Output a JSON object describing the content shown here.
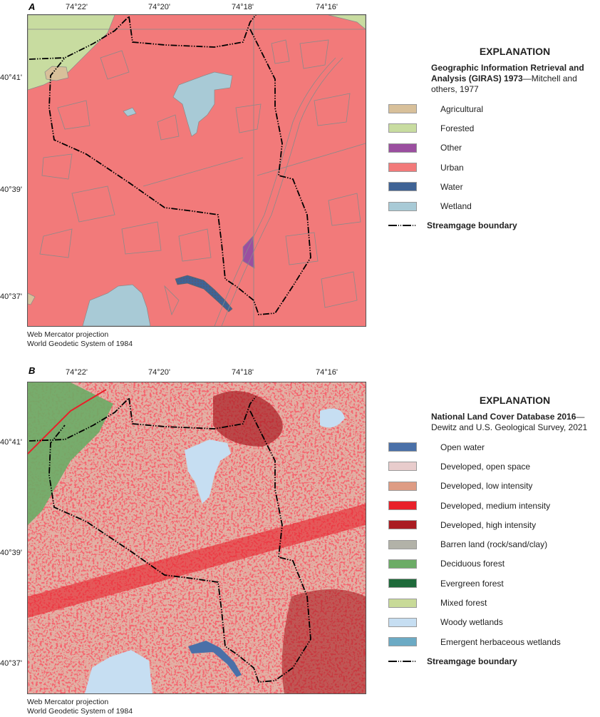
{
  "panels": [
    {
      "letter": "A",
      "lon_ticks": [
        "74°22'",
        "74°20'",
        "74°18'",
        "74°16'"
      ],
      "lat_ticks": [
        "40°41'",
        "40°39'",
        "40°37'"
      ],
      "projection": [
        "Web Mercator projection",
        "World Geodetic System of 1984"
      ],
      "legend": {
        "title": "EXPLANATION",
        "source_bold": "Geographic Information Retrieval and Analysis (GIRAS) 1973",
        "source_rest": "—Mitchell and others, 1977",
        "items": [
          {
            "label": "Agricultural",
            "color": "#d8c09a"
          },
          {
            "label": "Forested",
            "color": "#c8dca0"
          },
          {
            "label": "Other",
            "color": "#9b4fa0"
          },
          {
            "label": "Urban",
            "color": "#f27a7a"
          },
          {
            "label": "Water",
            "color": "#3f6395"
          },
          {
            "label": "Wetland",
            "color": "#a8cad6"
          }
        ],
        "boundary_label": "Streamgage boundary"
      }
    },
    {
      "letter": "B",
      "lon_ticks": [
        "74°22'",
        "74°20'",
        "74°18'",
        "74°16'"
      ],
      "lat_ticks": [
        "40°41'",
        "40°39'",
        "40°37'"
      ],
      "projection": [
        "Web Mercator projection",
        "World Geodetic System of 1984"
      ],
      "legend": {
        "title": "EXPLANATION",
        "source_bold": "National Land Cover Database 2016",
        "source_rest": "—Dewitz and U.S. Geological Survey, 2021",
        "items": [
          {
            "label": "Open water",
            "color": "#4a70a8"
          },
          {
            "label": "Developed, open space",
            "color": "#e8cccc"
          },
          {
            "label": "Developed, low intensity",
            "color": "#de9c84"
          },
          {
            "label": "Developed, medium intensity",
            "color": "#e8202a"
          },
          {
            "label": "Developed, high intensity",
            "color": "#aa1c22"
          },
          {
            "label": "Barren land (rock/sand/clay)",
            "color": "#b2b2a8"
          },
          {
            "label": "Deciduous forest",
            "color": "#6cac66"
          },
          {
            "label": "Evergreen forest",
            "color": "#1e6a3a"
          },
          {
            "label": "Mixed forest",
            "color": "#c8da98"
          },
          {
            "label": "Woody wetlands",
            "color": "#c6def2"
          },
          {
            "label": "Emergent herbaceous wetlands",
            "color": "#6caac4"
          }
        ],
        "boundary_label": "Streamgage boundary"
      }
    }
  ]
}
